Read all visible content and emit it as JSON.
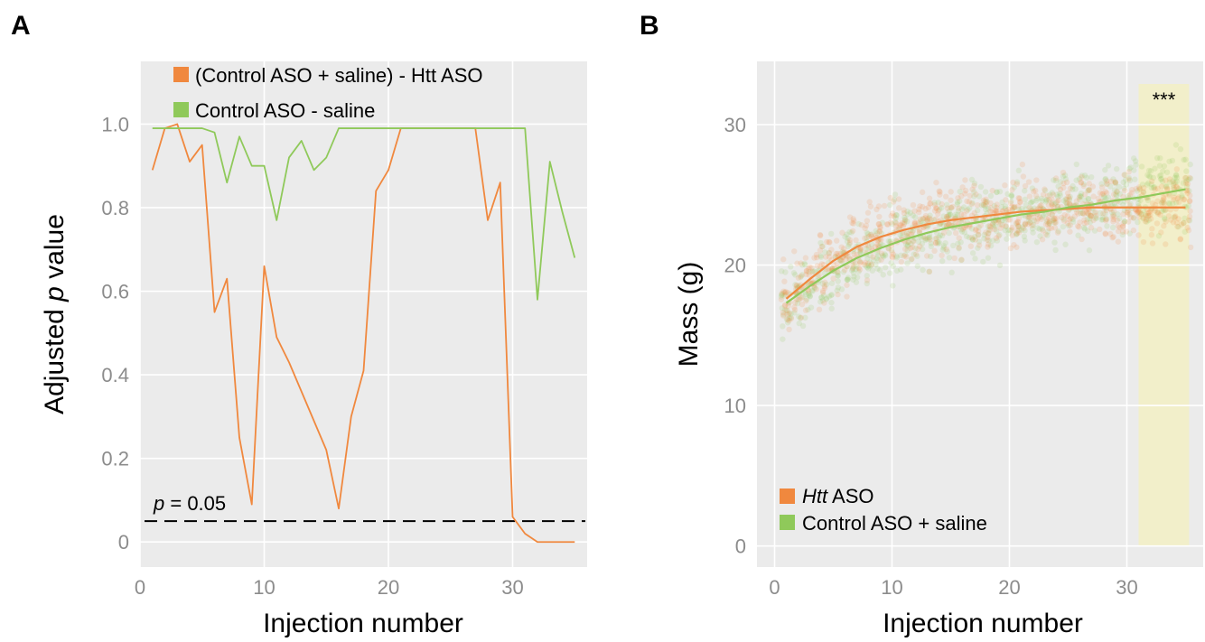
{
  "colors": {
    "orange": "#f0883e",
    "green": "#8fc95a",
    "panel_bg": "#ebebeb",
    "grid": "#ffffff",
    "highlight": "#f3f0c4"
  },
  "chart_data": [
    {
      "panel_label": "A",
      "type": "line",
      "xlabel": "Injection number",
      "ylabel_parts": [
        "Adjusted ",
        "p",
        " value"
      ],
      "xlim": [
        0,
        36
      ],
      "ylim": [
        -0.06,
        1.15
      ],
      "x_ticks": [
        0,
        10,
        20,
        30
      ],
      "y_ticks": [
        0,
        0.2,
        0.4,
        0.6,
        0.8,
        1.0
      ],
      "y_tick_labels": [
        "0",
        "0.2",
        "0.4",
        "0.6",
        "0.8",
        "1.0"
      ],
      "grid": true,
      "legend_position": "top",
      "annotation": {
        "parts": [
          "p",
          " = 0.05"
        ],
        "y": 0.05
      },
      "threshold_line": 0.05,
      "series": [
        {
          "name": "(Control ASO + saline) - Htt ASO",
          "color": "#f0883e",
          "x": [
            1,
            2,
            3,
            4,
            5,
            6,
            7,
            8,
            9,
            10,
            11,
            12,
            13,
            14,
            15,
            16,
            17,
            18,
            19,
            20,
            21,
            22,
            23,
            24,
            25,
            26,
            27,
            28,
            29,
            30,
            31,
            32,
            33,
            34,
            35
          ],
          "y": [
            0.89,
            0.99,
            1.0,
            0.91,
            0.95,
            0.55,
            0.63,
            0.25,
            0.09,
            0.66,
            0.49,
            0.43,
            0.36,
            0.29,
            0.22,
            0.08,
            0.3,
            0.41,
            0.84,
            0.89,
            0.99,
            0.99,
            0.99,
            0.99,
            0.99,
            0.99,
            0.99,
            0.77,
            0.86,
            0.06,
            0.02,
            0.0,
            0.0,
            0.0,
            0.0
          ]
        },
        {
          "name": "Control ASO - saline",
          "color": "#8fc95a",
          "x": [
            1,
            2,
            3,
            4,
            5,
            6,
            7,
            8,
            9,
            10,
            11,
            12,
            13,
            14,
            15,
            16,
            17,
            18,
            19,
            20,
            21,
            22,
            23,
            24,
            25,
            26,
            27,
            28,
            29,
            30,
            31,
            32,
            33,
            34,
            35
          ],
          "y": [
            0.99,
            0.99,
            0.99,
            0.99,
            0.99,
            0.98,
            0.86,
            0.97,
            0.9,
            0.9,
            0.77,
            0.92,
            0.96,
            0.89,
            0.92,
            0.99,
            0.99,
            0.99,
            0.99,
            0.99,
            0.99,
            0.99,
            0.99,
            0.99,
            0.99,
            0.99,
            0.99,
            0.99,
            0.99,
            0.99,
            0.99,
            0.58,
            0.91,
            0.79,
            0.68
          ]
        }
      ]
    },
    {
      "panel_label": "B",
      "type": "scatter",
      "xlabel": "Injection number",
      "ylabel": "Mass (g)",
      "xlim": [
        -1.5,
        36.5
      ],
      "ylim": [
        -1.5,
        34.5
      ],
      "x_ticks": [
        0,
        10,
        20,
        30
      ],
      "y_ticks": [
        0,
        10,
        20,
        30
      ],
      "grid": true,
      "legend_position": "bottom-left",
      "highlight_region": {
        "x": [
          31,
          35.3
        ],
        "label": "***"
      },
      "series": [
        {
          "name_italic": "Htt",
          "name_rest": " ASO",
          "color": "#f0883e",
          "trend_x": [
            1,
            3,
            5,
            7,
            9,
            11,
            13,
            15,
            17,
            19,
            21,
            23,
            25,
            27,
            29,
            31,
            33,
            35
          ],
          "trend_y": [
            17.6,
            19.0,
            20.3,
            21.3,
            22.0,
            22.5,
            22.9,
            23.2,
            23.4,
            23.6,
            23.8,
            23.9,
            24.0,
            24.1,
            24.1,
            24.1,
            24.1,
            24.1
          ],
          "spread": 1.6
        },
        {
          "name": "Control ASO + saline",
          "color": "#8fc95a",
          "trend_x": [
            1,
            3,
            5,
            7,
            9,
            11,
            13,
            15,
            17,
            19,
            21,
            23,
            25,
            27,
            29,
            31,
            33,
            35
          ],
          "trend_y": [
            17.3,
            18.5,
            19.6,
            20.5,
            21.2,
            21.8,
            22.3,
            22.7,
            23.0,
            23.3,
            23.6,
            23.8,
            24.1,
            24.3,
            24.6,
            24.8,
            25.1,
            25.4
          ],
          "spread": 1.8
        }
      ]
    }
  ]
}
